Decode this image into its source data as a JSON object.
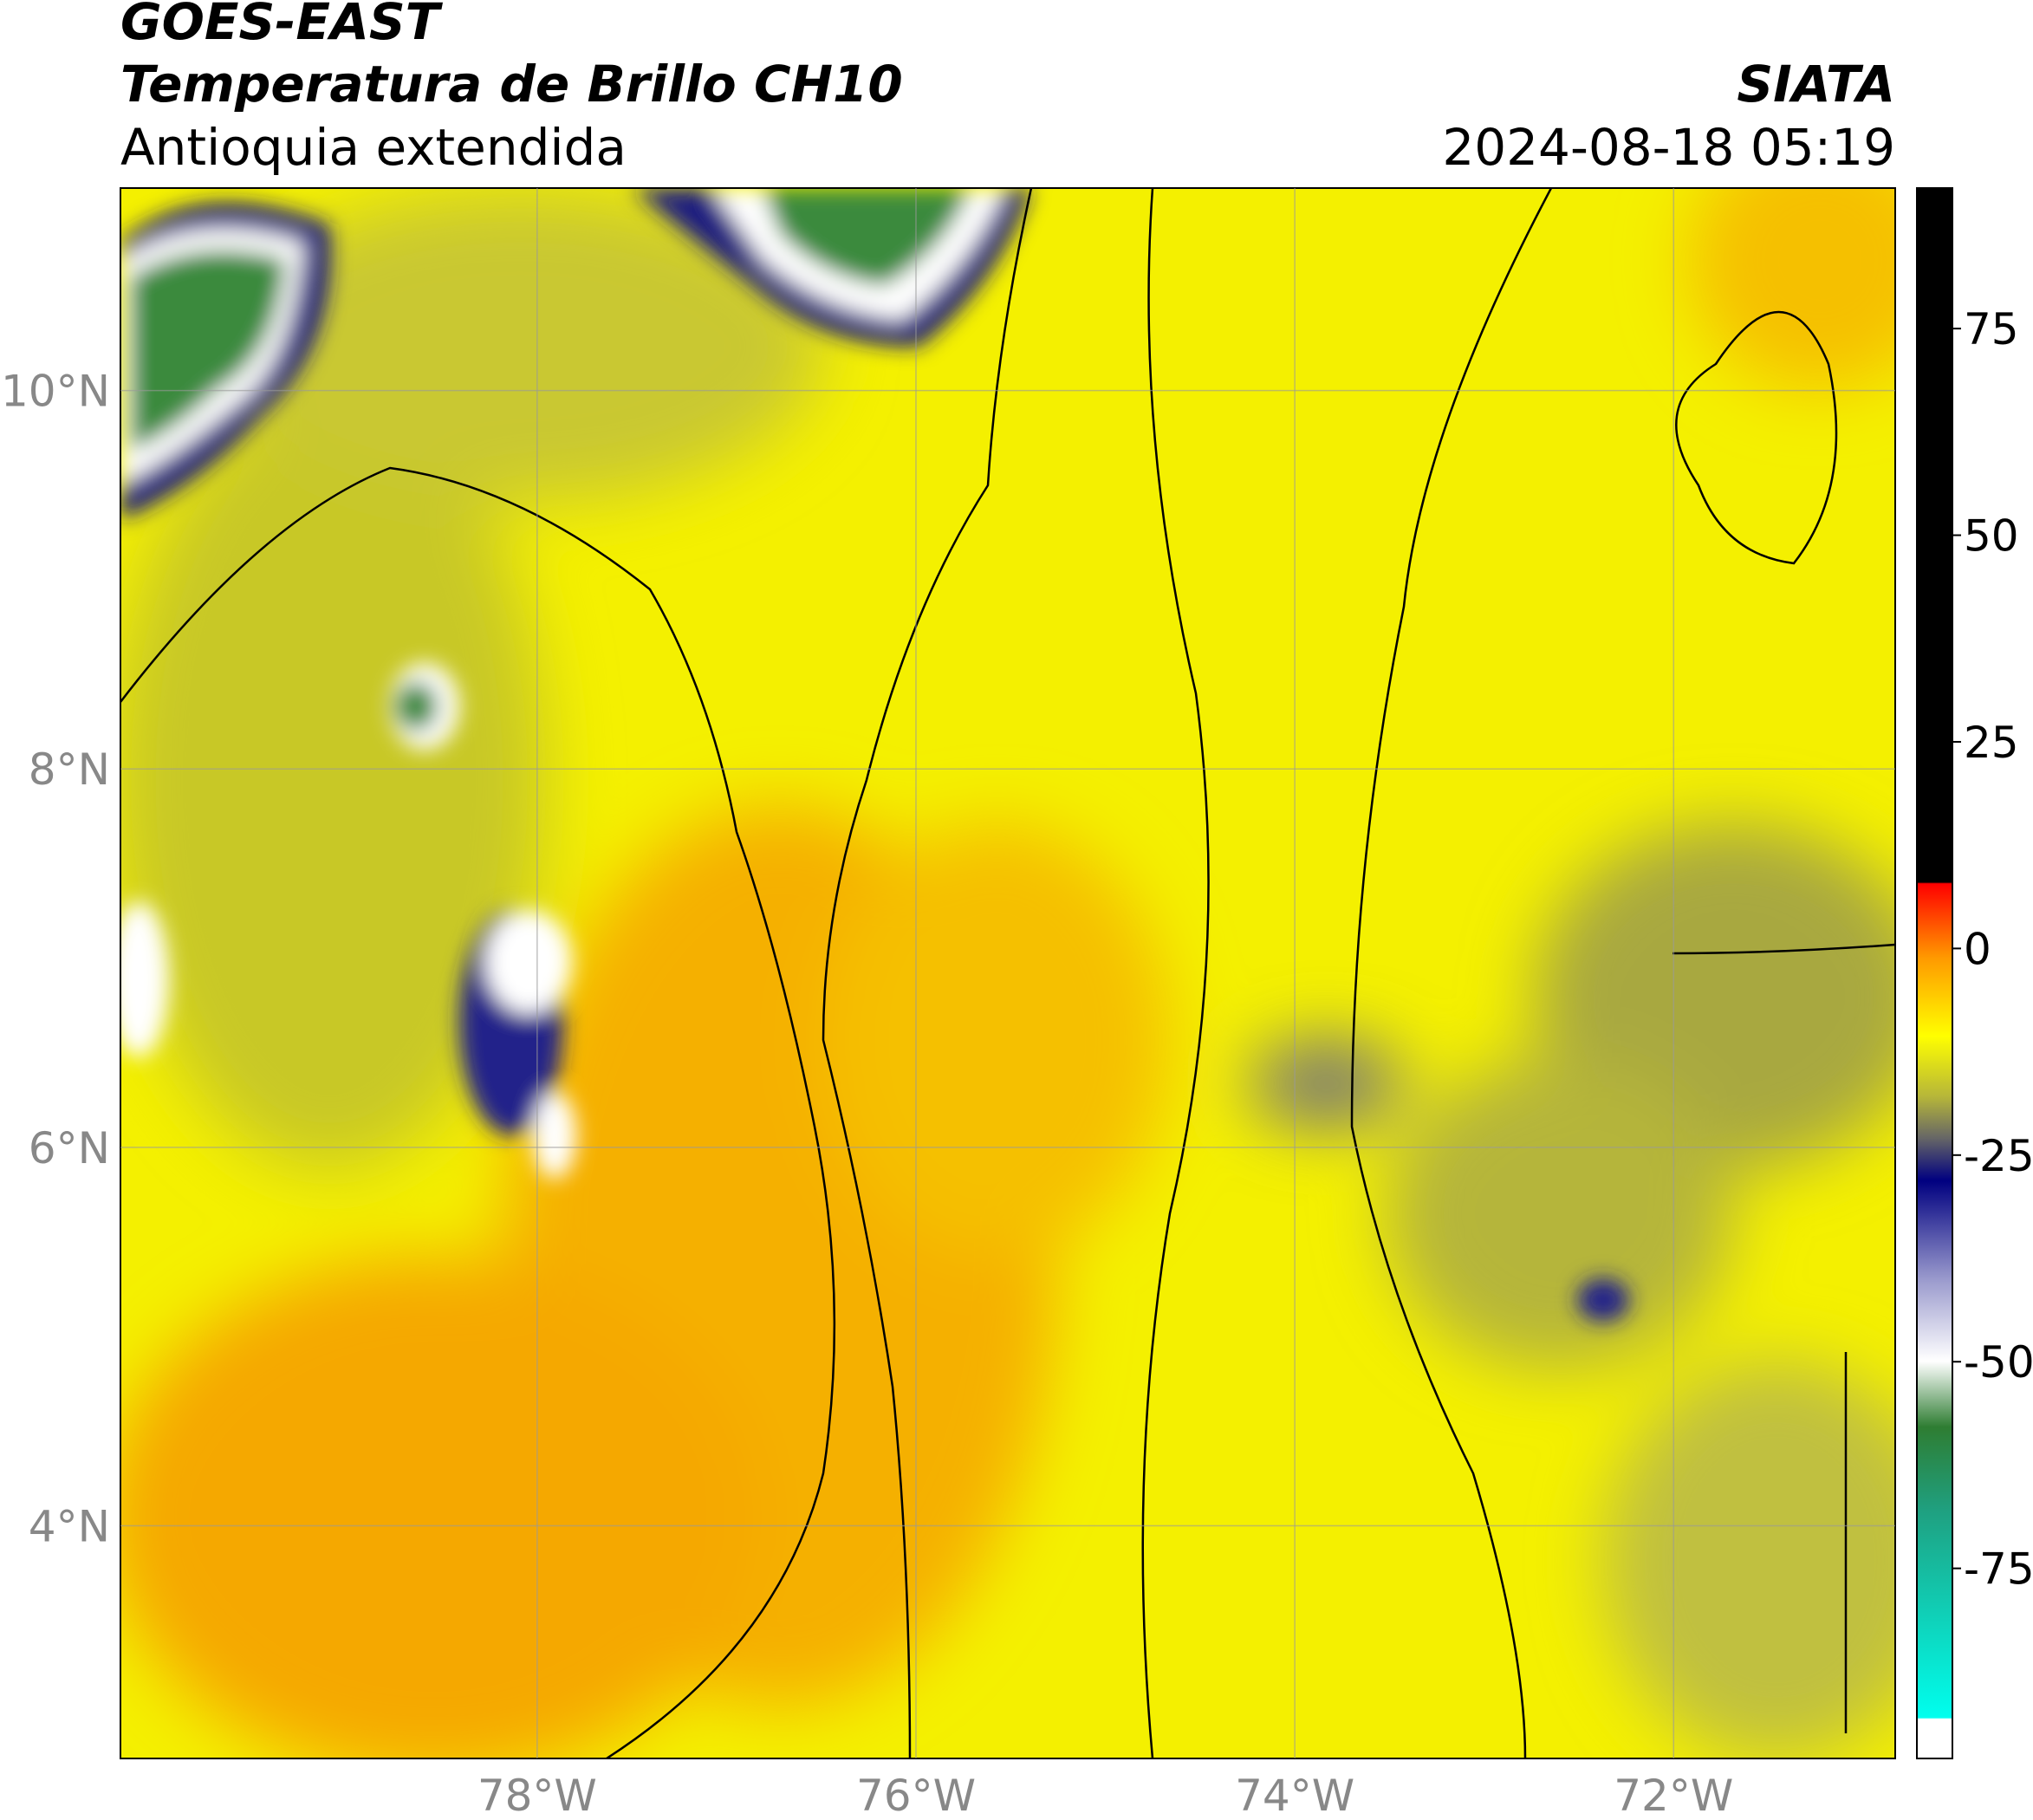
{
  "chart_data": {
    "type": "map",
    "title": "GOES-EAST",
    "subtitle": "Temperatura de Brillo CH10",
    "region": "Antioquia extendida",
    "source": "SIATA",
    "datetime": "2024-08-18 05:19",
    "xlim": [
      -80.2,
      -70.83
    ],
    "ylim": [
      2.77,
      11.07
    ],
    "xticks": [
      {
        "value": -78,
        "label": "78°W"
      },
      {
        "value": -76,
        "label": "76°W"
      },
      {
        "value": -74,
        "label": "74°W"
      },
      {
        "value": -72,
        "label": "72°W"
      }
    ],
    "yticks": [
      {
        "value": 10,
        "label": "10°N"
      },
      {
        "value": 8,
        "label": "8°N"
      },
      {
        "value": 6,
        "label": "6°N"
      },
      {
        "value": 4,
        "label": "4°N"
      }
    ],
    "grid": true,
    "colorbar": {
      "lim": [
        -98,
        92
      ],
      "ticks": [
        75,
        50,
        25,
        0,
        -25,
        -50,
        -75
      ]
    }
  }
}
